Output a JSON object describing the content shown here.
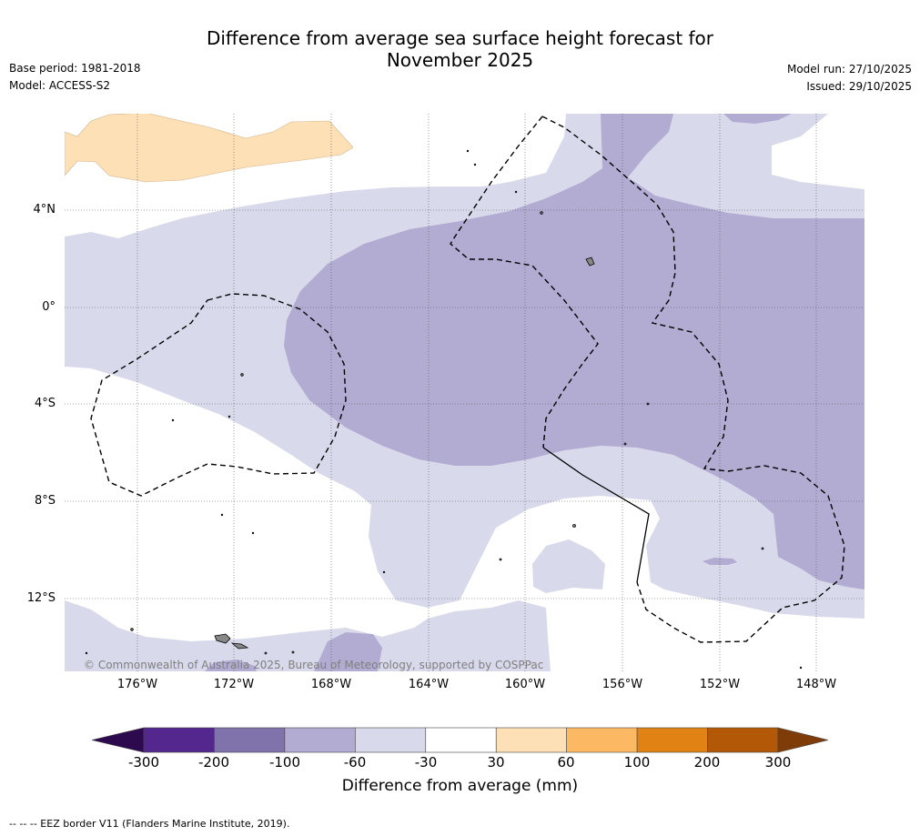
{
  "title": {
    "line1": "Difference from average sea surface height forecast for",
    "line2": "November 2025"
  },
  "meta": {
    "base_period": "Base period: 1981-2018",
    "model": "Model: ACCESS-S2",
    "model_run": "Model run: 27/10/2025",
    "issued": "Issued: 29/10/2025"
  },
  "map": {
    "lat_labels": [
      "4°N",
      "0°",
      "4°S",
      "8°S",
      "12°S"
    ],
    "lon_labels": [
      "176°W",
      "172°W",
      "168°W",
      "164°W",
      "160°W",
      "156°W",
      "152°W",
      "148°W"
    ],
    "copyright": "© Commonwealth of Australia 2025, Bureau of Meteorology, supported by COSPPac"
  },
  "legend": {
    "title": "Difference from average (mm)",
    "ticks": [
      "-300",
      "-200",
      "-100",
      "-60",
      "-30",
      "30",
      "60",
      "100",
      "200",
      "300"
    ],
    "colors": [
      "#2d0a4e",
      "#54278f",
      "#8073ac",
      "#b2abd2",
      "#d8daeb",
      "#ffffff",
      "#fee0b6",
      "#fdb863",
      "#e08214",
      "#b35806",
      "#7f3b08"
    ]
  },
  "footnote": "--  --  -- EEZ border V11 (Flanders Marine Institute, 2019)."
}
